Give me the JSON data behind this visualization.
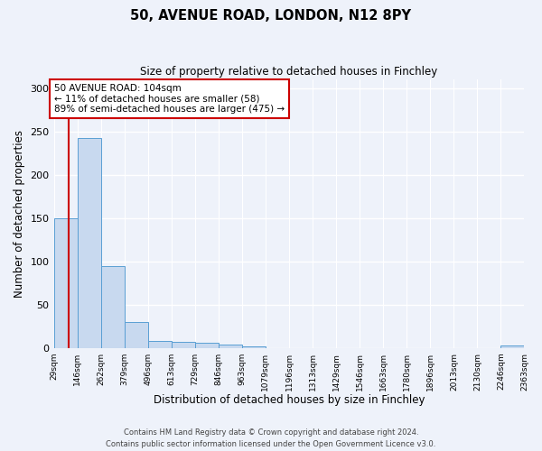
{
  "title1": "50, AVENUE ROAD, LONDON, N12 8PY",
  "title2": "Size of property relative to detached houses in Finchley",
  "xlabel": "Distribution of detached houses by size in Finchley",
  "ylabel": "Number of detached properties",
  "bin_edges": [
    29,
    146,
    262,
    379,
    496,
    613,
    729,
    846,
    963,
    1079,
    1196,
    1313,
    1429,
    1546,
    1663,
    1780,
    1896,
    2013,
    2130,
    2246,
    2363
  ],
  "bar_heights": [
    150,
    242,
    95,
    30,
    8,
    7,
    6,
    4,
    2,
    0,
    0,
    0,
    0,
    0,
    0,
    0,
    0,
    0,
    0,
    3
  ],
  "bar_color": "#c8d9ef",
  "bar_edge_color": "#5a9fd4",
  "property_size": 104,
  "annotation_line1": "50 AVENUE ROAD: 104sqm",
  "annotation_line2": "← 11% of detached houses are smaller (58)",
  "annotation_line3": "89% of semi-detached houses are larger (475) →",
  "red_line_color": "#cc0000",
  "annotation_box_color": "#ffffff",
  "annotation_box_edge": "#cc0000",
  "ylim": [
    0,
    310
  ],
  "yticks": [
    0,
    50,
    100,
    150,
    200,
    250,
    300
  ],
  "bg_color": "#eef2fa",
  "footer1": "Contains HM Land Registry data © Crown copyright and database right 2024.",
  "footer2": "Contains public sector information licensed under the Open Government Licence v3.0."
}
